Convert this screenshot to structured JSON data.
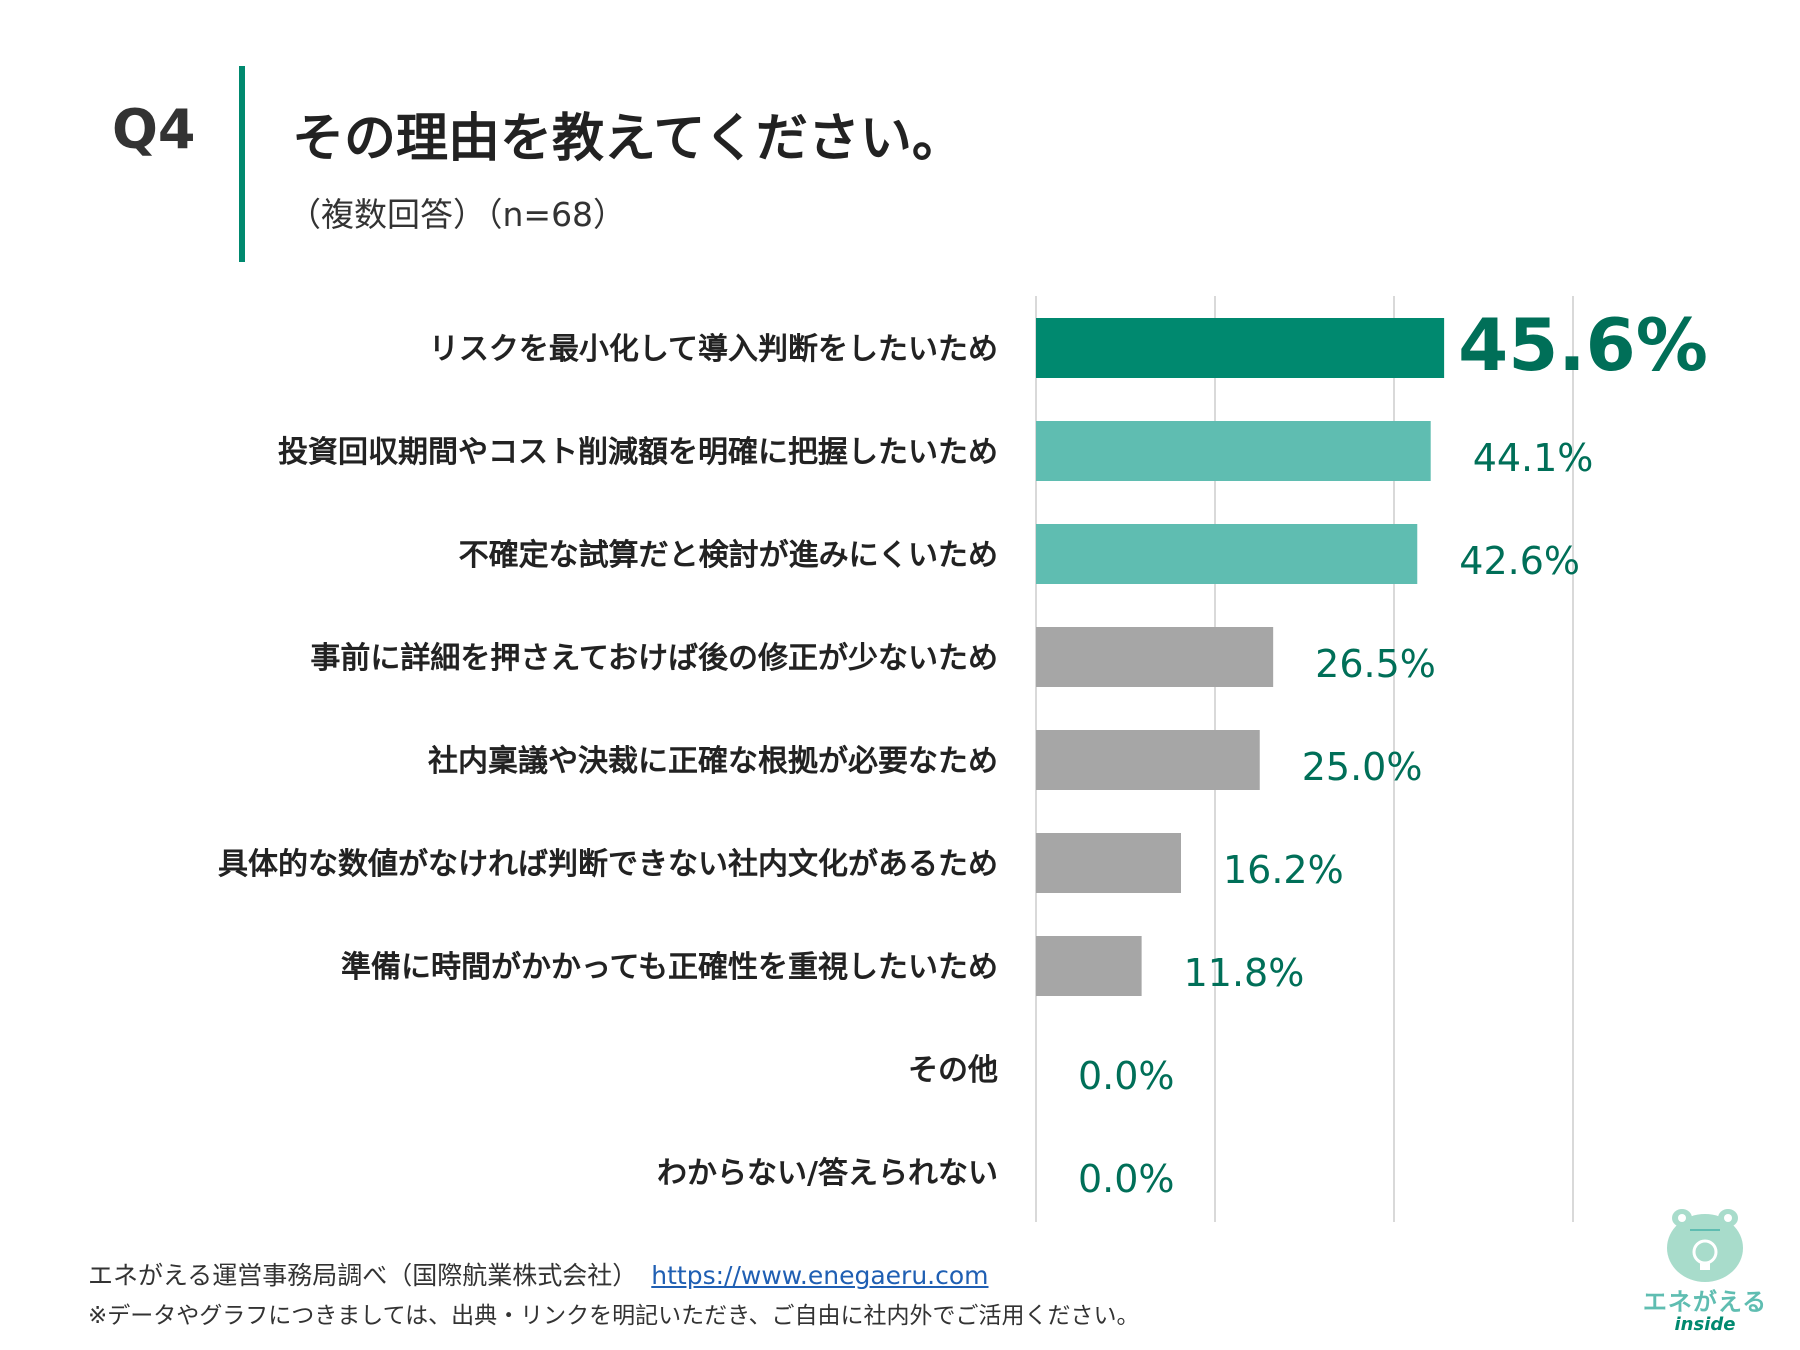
{
  "header": {
    "question_number": "Q4",
    "title": "その理由を教えてください。",
    "subtitle": "（複数回答）（n=68）"
  },
  "colors": {
    "accent": "#00896f",
    "highlight_bar": "#00896f",
    "secondary_bar": "#5fbdb1",
    "other_bar": "#a6a6a6",
    "value_text": "#006f58",
    "gridline": "#d9d9d9"
  },
  "chart_data": {
    "type": "bar",
    "orientation": "horizontal",
    "categories": [
      "リスクを最小化して導入判断をしたいため",
      "投資回収期間やコスト削減額を明確に把握したいため",
      "不確定な試算だと検討が進みにくいため",
      "事前に詳細を押さえておけば後の修正が少ないため",
      "社内稟議や決裁に正確な根拠が必要なため",
      "具体的な数値がなければ判断できない社内文化があるため",
      "準備に時間がかかっても正確性を重視したいため",
      "その他",
      "わからない/答えられない"
    ],
    "values": [
      45.6,
      44.1,
      42.6,
      26.5,
      25.0,
      16.2,
      11.8,
      0.0,
      0.0
    ],
    "value_labels": [
      "45.6%",
      "44.1%",
      "42.6%",
      "26.5%",
      "25.0%",
      "16.2%",
      "11.8%",
      "0.0%",
      "0.0%"
    ],
    "bar_groups": [
      "highlight",
      "secondary",
      "secondary",
      "other",
      "other",
      "other",
      "other",
      "other",
      "other"
    ],
    "xlim": [
      0,
      60
    ],
    "gridlines": [
      0,
      20,
      40,
      60
    ],
    "unit": "%"
  },
  "footer": {
    "source": "エネがえる運営事務局調べ（国際航業株式会社）",
    "url": "https://www.enegaeru.com",
    "note": "※データやグラフにつきましては、出典・リンクを明記いただき、ご自由に社内外でご活用ください。"
  },
  "logo": {
    "name": "エネがえる",
    "sub": "inside"
  }
}
